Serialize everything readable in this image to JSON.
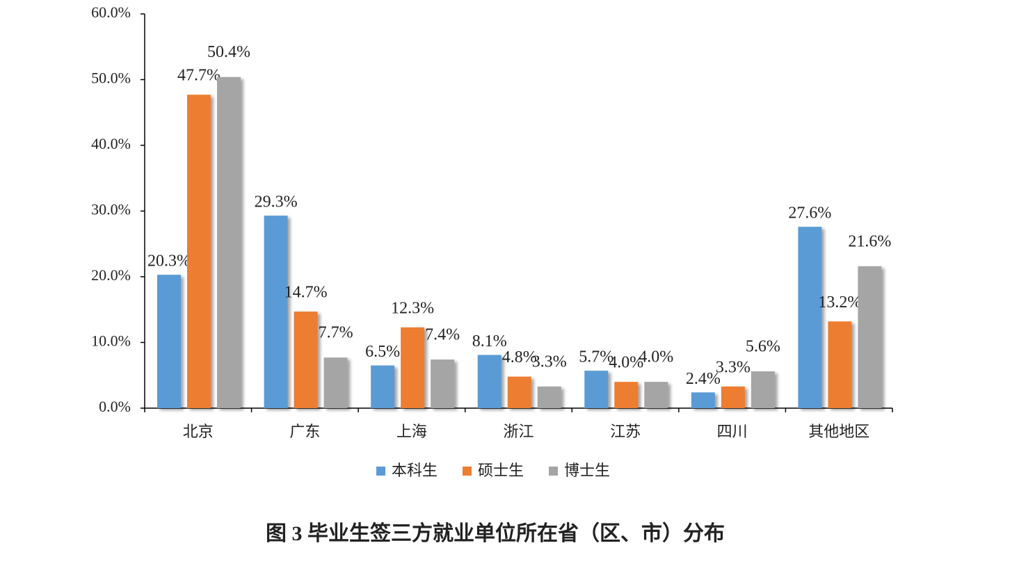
{
  "chart_data": {
    "type": "bar",
    "title": "图 3 毕业生签三方就业单位所在省（区、市）分布",
    "categories": [
      "北京",
      "广东",
      "上海",
      "浙江",
      "江苏",
      "四川",
      "其他地区"
    ],
    "series": [
      {
        "name": "本科生",
        "color": "#5b9bd5",
        "values": [
          20.3,
          29.3,
          6.5,
          8.1,
          5.7,
          2.4,
          27.6
        ],
        "value_labels": [
          "20.3%",
          "29.3%",
          "6.5%",
          "8.1%",
          "5.7%",
          "2.4%",
          "27.6%"
        ]
      },
      {
        "name": "硕士生",
        "color": "#ed7d31",
        "values": [
          47.7,
          14.7,
          12.3,
          4.8,
          4.0,
          3.3,
          13.2
        ],
        "value_labels": [
          "47.7%",
          "14.7%",
          "12.3%",
          "4.8%",
          "4.0%",
          "3.3%",
          "13.2%"
        ]
      },
      {
        "name": "博士生",
        "color": "#a5a5a5",
        "values": [
          50.4,
          7.7,
          7.4,
          3.3,
          4.0,
          5.6,
          21.6
        ],
        "value_labels": [
          "50.4%",
          "7.7%",
          "7.4%",
          "3.3%",
          "4.0%",
          "5.6%",
          "21.6%"
        ]
      }
    ],
    "ylim": [
      0,
      60
    ],
    "yticks": [
      {
        "value": 0,
        "label": "0.0%"
      },
      {
        "value": 10,
        "label": "10.0%"
      },
      {
        "value": 20,
        "label": "20.0%"
      },
      {
        "value": 30,
        "label": "30.0%"
      },
      {
        "value": 40,
        "label": "40.0%"
      },
      {
        "value": 50,
        "label": "50.0%"
      },
      {
        "value": 60,
        "label": "60.0%"
      }
    ],
    "legend": "bottom"
  }
}
